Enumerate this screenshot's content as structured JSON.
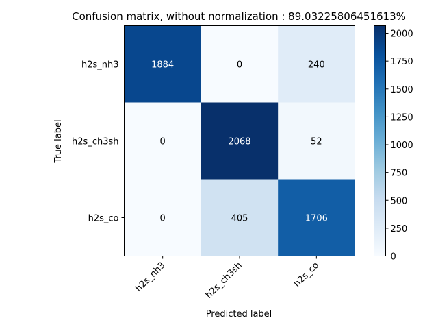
{
  "chart_data": {
    "type": "heatmap",
    "title": "Confusion matrix, without normalization : 89.03225806451613%",
    "xlabel": "Predicted label",
    "ylabel": "True label",
    "x_categories": [
      "h2s_nh3",
      "h2s_ch3sh",
      "h2s_co"
    ],
    "y_categories": [
      "h2s_nh3",
      "h2s_ch3sh",
      "h2s_co"
    ],
    "values": [
      [
        1884,
        0,
        240
      ],
      [
        0,
        2068,
        52
      ],
      [
        0,
        405,
        1706
      ]
    ],
    "colormap": "Blues",
    "vmin": 0,
    "vmax": 2068,
    "colorbar_ticks": [
      0,
      250,
      500,
      750,
      1000,
      1250,
      1500,
      1750,
      2000
    ],
    "text_color_threshold": 1034,
    "text_color_high": "#ffffff",
    "text_color_low": "#000000"
  }
}
